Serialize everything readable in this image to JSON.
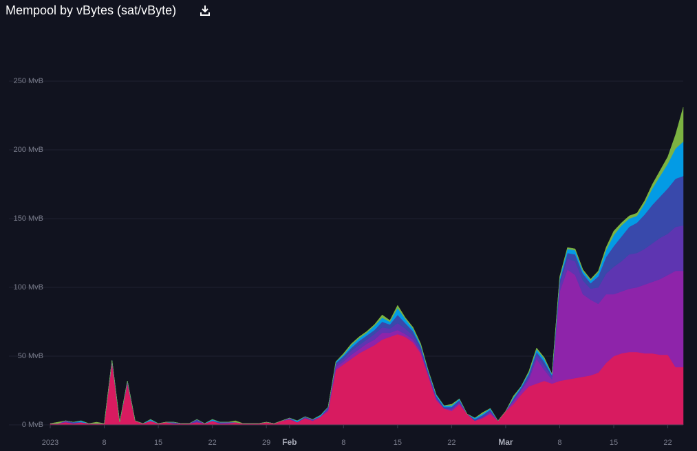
{
  "chart_data": {
    "type": "stacked-area",
    "title": "Mempool by vBytes (sat/vByte)",
    "x": [
      "2023-01-01",
      "2023-01-02",
      "2023-01-03",
      "2023-01-04",
      "2023-01-05",
      "2023-01-06",
      "2023-01-07",
      "2023-01-08",
      "2023-01-09",
      "2023-01-10",
      "2023-01-11",
      "2023-01-12",
      "2023-01-13",
      "2023-01-14",
      "2023-01-15",
      "2023-01-16",
      "2023-01-17",
      "2023-01-18",
      "2023-01-19",
      "2023-01-20",
      "2023-01-21",
      "2023-01-22",
      "2023-01-23",
      "2023-01-24",
      "2023-01-25",
      "2023-01-26",
      "2023-01-27",
      "2023-01-28",
      "2023-01-29",
      "2023-01-30",
      "2023-01-31",
      "2023-02-01",
      "2023-02-02",
      "2023-02-03",
      "2023-02-04",
      "2023-02-05",
      "2023-02-06",
      "2023-02-07",
      "2023-02-08",
      "2023-02-09",
      "2023-02-10",
      "2023-02-11",
      "2023-02-12",
      "2023-02-13",
      "2023-02-14",
      "2023-02-15",
      "2023-02-16",
      "2023-02-17",
      "2023-02-18",
      "2023-02-19",
      "2023-02-20",
      "2023-02-21",
      "2023-02-22",
      "2023-02-23",
      "2023-02-24",
      "2023-02-25",
      "2023-02-26",
      "2023-02-27",
      "2023-02-28",
      "2023-03-01",
      "2023-03-02",
      "2023-03-03",
      "2023-03-04",
      "2023-03-05",
      "2023-03-06",
      "2023-03-07",
      "2023-03-08",
      "2023-03-09",
      "2023-03-10",
      "2023-03-11",
      "2023-03-12",
      "2023-03-13",
      "2023-03-14",
      "2023-03-15",
      "2023-03-16",
      "2023-03-17",
      "2023-03-18",
      "2023-03-19",
      "2023-03-20",
      "2023-03-21",
      "2023-03-22",
      "2023-03-23",
      "2023-03-24"
    ],
    "series": [
      {
        "color": "#d81b60",
        "values": [
          1,
          1,
          2,
          1,
          2,
          1,
          1,
          1,
          45,
          2,
          30,
          3,
          1,
          3,
          1,
          2,
          1,
          1,
          1,
          2,
          1,
          3,
          1,
          1,
          2,
          1,
          1,
          1,
          2,
          1,
          3,
          4,
          2,
          5,
          3,
          6,
          10,
          40,
          44,
          48,
          52,
          55,
          58,
          62,
          64,
          66,
          64,
          60,
          52,
          35,
          18,
          12,
          10,
          15,
          8,
          3,
          5,
          8,
          3,
          10,
          15,
          22,
          28,
          30,
          32,
          30,
          32,
          33,
          34,
          35,
          36,
          38,
          45,
          50,
          52,
          53,
          53,
          52,
          52,
          51,
          51,
          42,
          42
        ]
      },
      {
        "color": "#8e24aa",
        "values": [
          0,
          0,
          0,
          0,
          0,
          0,
          0,
          0,
          1,
          0,
          1,
          0,
          0,
          0,
          0,
          0,
          0,
          0,
          0,
          0,
          0,
          0,
          0,
          0,
          0,
          0,
          0,
          0,
          0,
          0,
          0,
          0,
          0,
          0,
          0,
          0,
          1,
          2,
          2,
          3,
          3,
          4,
          4,
          5,
          3,
          3,
          2,
          2,
          1,
          1,
          1,
          0,
          1,
          1,
          0,
          0,
          0,
          1,
          0,
          0,
          2,
          3,
          5,
          18,
          8,
          3,
          65,
          80,
          75,
          60,
          55,
          50,
          50,
          45,
          45,
          46,
          47,
          50,
          52,
          55,
          58,
          70,
          70
        ]
      },
      {
        "color": "#5e35b1",
        "values": [
          0,
          0,
          1,
          0,
          0,
          0,
          0,
          0,
          1,
          0,
          0,
          0,
          0,
          0,
          0,
          0,
          0,
          0,
          0,
          1,
          0,
          0,
          0,
          1,
          0,
          0,
          0,
          0,
          0,
          0,
          0,
          1,
          0,
          0,
          1,
          0,
          1,
          2,
          2,
          3,
          3,
          3,
          4,
          4,
          3,
          5,
          4,
          3,
          2,
          1,
          1,
          0,
          1,
          1,
          0,
          0,
          1,
          1,
          0,
          0,
          1,
          1,
          2,
          3,
          3,
          2,
          5,
          8,
          10,
          10,
          8,
          12,
          15,
          20,
          22,
          25,
          25,
          26,
          28,
          30,
          30,
          32,
          33
        ]
      },
      {
        "color": "#3949ab",
        "values": [
          0,
          0,
          0,
          1,
          0,
          0,
          0,
          0,
          0,
          0,
          1,
          0,
          0,
          0,
          0,
          0,
          1,
          0,
          0,
          1,
          0,
          0,
          1,
          0,
          0,
          0,
          0,
          0,
          0,
          0,
          0,
          0,
          0,
          1,
          0,
          0,
          1,
          1,
          2,
          2,
          3,
          3,
          3,
          4,
          3,
          6,
          4,
          3,
          2,
          1,
          1,
          1,
          1,
          1,
          0,
          1,
          1,
          1,
          0,
          0,
          1,
          1,
          2,
          2,
          3,
          1,
          3,
          4,
          5,
          5,
          4,
          8,
          12,
          15,
          18,
          20,
          22,
          25,
          28,
          30,
          33,
          35,
          36
        ]
      },
      {
        "color": "#039be5",
        "values": [
          0,
          0,
          0,
          0,
          1,
          0,
          0,
          0,
          0,
          0,
          0,
          0,
          0,
          1,
          0,
          0,
          0,
          0,
          0,
          0,
          0,
          1,
          0,
          0,
          0,
          0,
          0,
          0,
          0,
          0,
          0,
          0,
          1,
          0,
          0,
          1,
          0,
          1,
          1,
          2,
          2,
          2,
          3,
          3,
          2,
          5,
          3,
          2,
          1,
          1,
          1,
          1,
          1,
          1,
          0,
          1,
          1,
          1,
          0,
          0,
          1,
          1,
          1,
          2,
          2,
          1,
          2,
          3,
          3,
          2,
          2,
          3,
          5,
          8,
          8,
          6,
          5,
          8,
          12,
          15,
          18,
          22,
          25
        ]
      },
      {
        "color": "#7cb342",
        "values": [
          0,
          1,
          0,
          0,
          0,
          0,
          1,
          0,
          0,
          0,
          0,
          0,
          0,
          0,
          0,
          0,
          0,
          0,
          0,
          0,
          0,
          0,
          0,
          0,
          1,
          0,
          0,
          0,
          0,
          0,
          0,
          0,
          0,
          0,
          0,
          0,
          0,
          0,
          1,
          1,
          1,
          1,
          1,
          2,
          1,
          2,
          1,
          1,
          1,
          0,
          0,
          0,
          1,
          0,
          0,
          0,
          1,
          0,
          0,
          0,
          1,
          0,
          1,
          1,
          1,
          0,
          1,
          1,
          1,
          1,
          1,
          1,
          2,
          3,
          2,
          2,
          2,
          2,
          3,
          4,
          5,
          10,
          25
        ]
      }
    ],
    "xlim": [
      "2023-01-01",
      "2023-03-24"
    ],
    "xticks": [
      {
        "value": "2023-01-01",
        "label": "2023"
      },
      {
        "value": "2023-01-08",
        "label": "8"
      },
      {
        "value": "2023-01-15",
        "label": "15"
      },
      {
        "value": "2023-01-22",
        "label": "22"
      },
      {
        "value": "2023-01-29",
        "label": "29"
      },
      {
        "value": "2023-02-01",
        "label": "Feb"
      },
      {
        "value": "2023-02-08",
        "label": "8"
      },
      {
        "value": "2023-02-15",
        "label": "15"
      },
      {
        "value": "2023-02-22",
        "label": "22"
      },
      {
        "value": "2023-03-01",
        "label": "Mar"
      },
      {
        "value": "2023-03-08",
        "label": "8"
      },
      {
        "value": "2023-03-15",
        "label": "15"
      },
      {
        "value": "2023-03-22",
        "label": "22"
      }
    ],
    "ylim": [
      0,
      250
    ],
    "yticks": [
      {
        "value": 0,
        "label": "0 MvB"
      },
      {
        "value": 50,
        "label": "50 MvB"
      },
      {
        "value": 100,
        "label": "100 MvB"
      },
      {
        "value": 150,
        "label": "150 MvB"
      },
      {
        "value": 200,
        "label": "200 MvB"
      },
      {
        "value": 250,
        "label": "250 MvB"
      }
    ],
    "grid": true
  }
}
